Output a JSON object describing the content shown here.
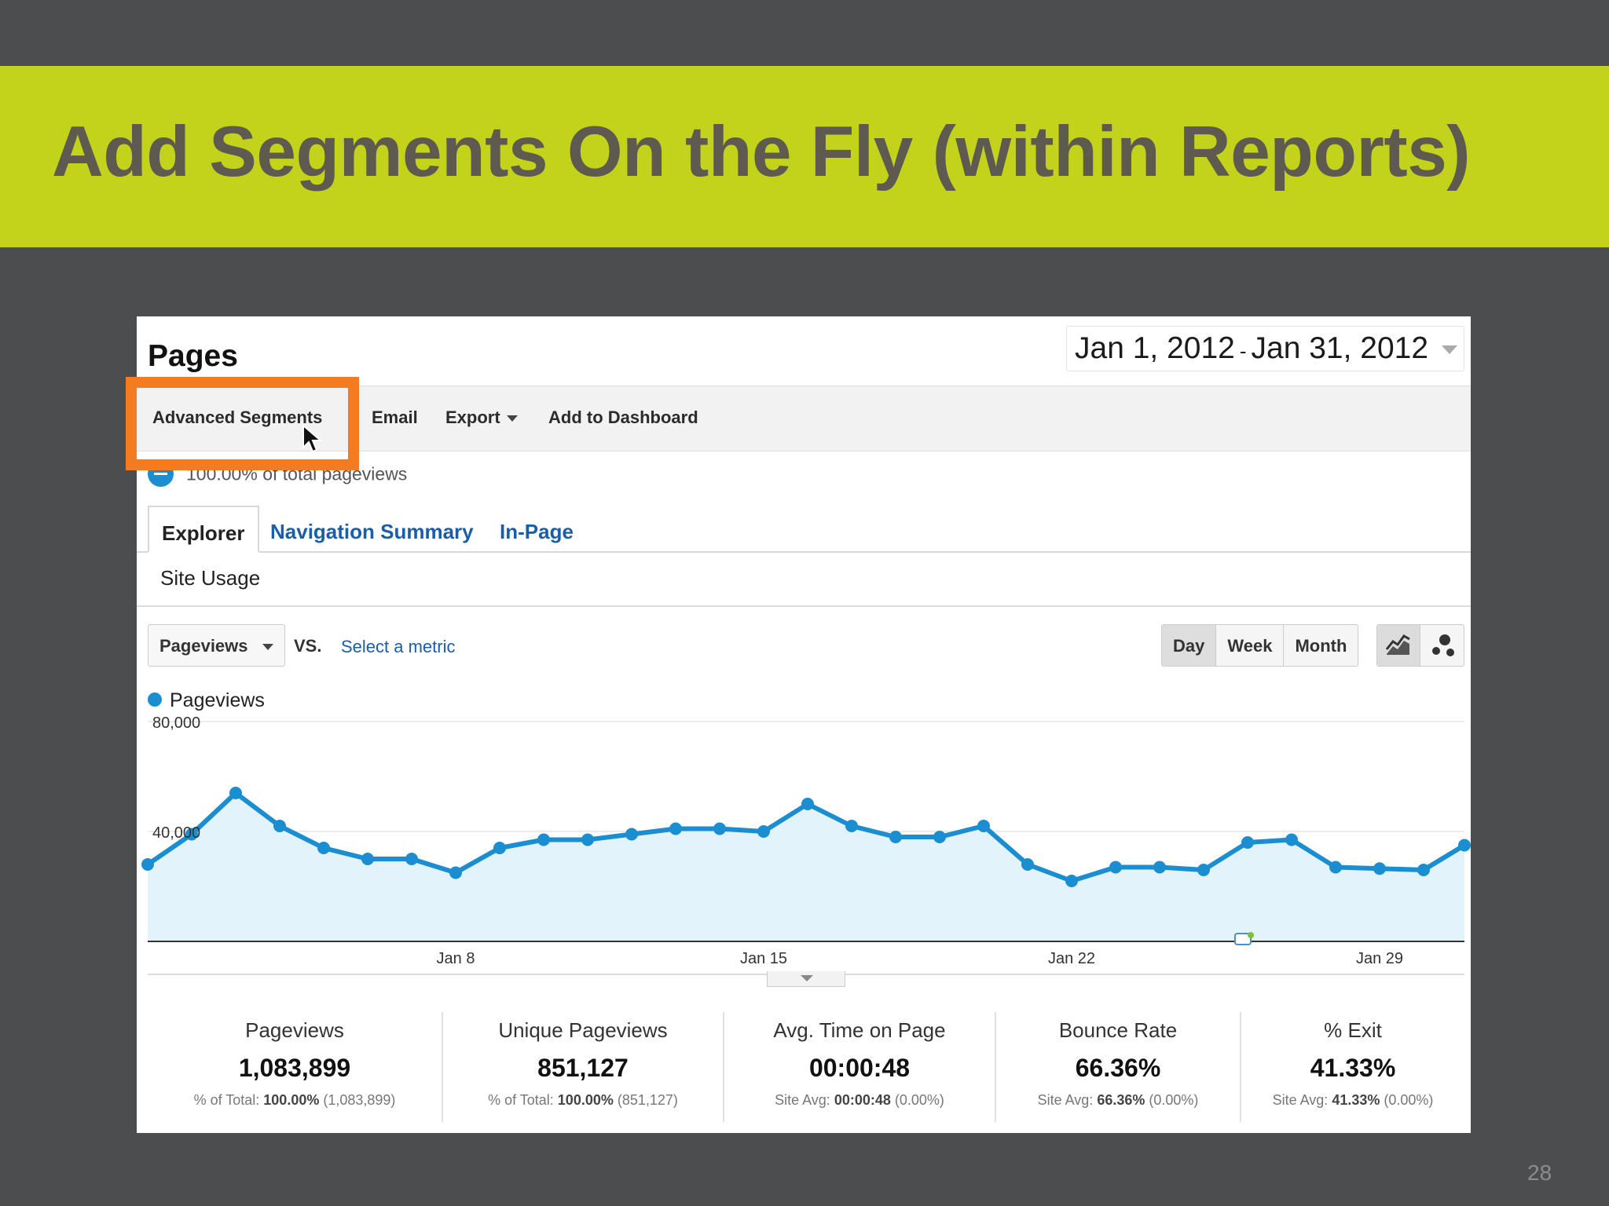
{
  "slide": {
    "title": "Add Segments On the Fly (within Reports)",
    "number": "28",
    "highlight_color": "#f47b20",
    "banner_color": "#c3d21b"
  },
  "report": {
    "title": "Pages",
    "date_start": "Jan 1, 2012",
    "date_sep": "-",
    "date_end": "Jan 31, 2012"
  },
  "toolbar": {
    "advanced_segments": "Advanced Segments",
    "email": "Email",
    "export": "Export",
    "add_to_dashboard": "Add to Dashboard"
  },
  "segment": {
    "label": "100.00% of total pageviews",
    "color": "#1a8ed1"
  },
  "tabs": {
    "explorer": "Explorer",
    "navigation_summary": "Navigation Summary",
    "in_page": "In-Page"
  },
  "subtab": "Site Usage",
  "controls": {
    "metric": "Pageviews",
    "vs": "VS.",
    "select_metric": "Select a metric",
    "periods": [
      "Day",
      "Week",
      "Month"
    ],
    "active_period": "Day",
    "line_chart_icon": "line-chart-icon",
    "motion_chart_icon": "bubble-chart-icon"
  },
  "chart_data": {
    "type": "area",
    "series": [
      {
        "name": "Pageviews",
        "color": "#1a8ed1",
        "values": [
          28000,
          39000,
          54000,
          42000,
          34000,
          30000,
          30000,
          25000,
          34000,
          37000,
          37000,
          39000,
          41000,
          41000,
          40000,
          50000,
          42000,
          38000,
          38000,
          42000,
          28000,
          22000,
          27000,
          27000,
          26000,
          36000,
          37000,
          27000,
          26500,
          26000,
          35000
        ]
      }
    ],
    "x": [
      1,
      2,
      3,
      4,
      5,
      6,
      7,
      8,
      9,
      10,
      11,
      12,
      13,
      14,
      15,
      16,
      17,
      18,
      19,
      20,
      21,
      22,
      23,
      24,
      25,
      26,
      27,
      28,
      29,
      30,
      31
    ],
    "x_tick_labels": [
      {
        "day": 8,
        "label": "Jan 8"
      },
      {
        "day": 15,
        "label": "Jan 15"
      },
      {
        "day": 22,
        "label": "Jan 22"
      },
      {
        "day": 29,
        "label": "Jan 29"
      }
    ],
    "y_tick_labels": [
      {
        "value": 80000,
        "label": "80,000"
      },
      {
        "value": 40000,
        "label": "40,000"
      }
    ],
    "ylim": [
      0,
      80000
    ],
    "grid": true
  },
  "stats": [
    {
      "label": "Pageviews",
      "value": "1,083,899",
      "sub_prefix": "% of Total: ",
      "sub_bold": "100.00%",
      "sub_suffix": " (1,083,899)"
    },
    {
      "label": "Unique Pageviews",
      "value": "851,127",
      "sub_prefix": "% of Total: ",
      "sub_bold": "100.00%",
      "sub_suffix": " (851,127)"
    },
    {
      "label": "Avg. Time on Page",
      "value": "00:00:48",
      "sub_prefix": "Site Avg: ",
      "sub_bold": "00:00:48",
      "sub_suffix": " (0.00%)"
    },
    {
      "label": "Bounce Rate",
      "value": "66.36%",
      "sub_prefix": "Site Avg: ",
      "sub_bold": "66.36%",
      "sub_suffix": " (0.00%)"
    },
    {
      "label": "% Exit",
      "value": "41.33%",
      "sub_prefix": "Site Avg: ",
      "sub_bold": "41.33%",
      "sub_suffix": " (0.00%)"
    }
  ]
}
